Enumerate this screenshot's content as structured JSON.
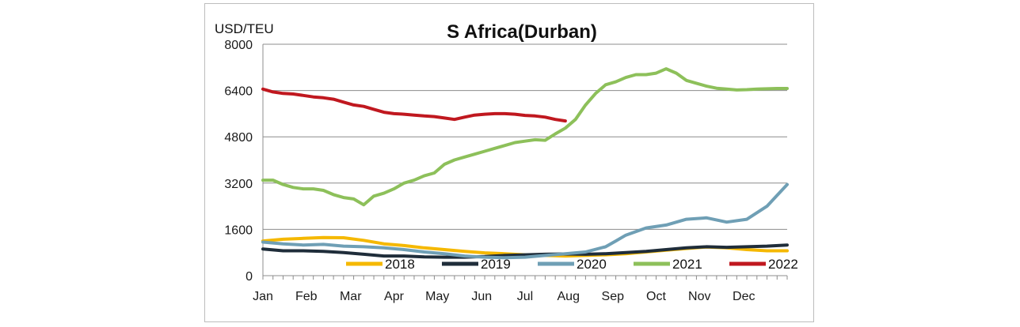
{
  "chart_data": {
    "type": "line",
    "title": "S Africa(Durban)",
    "ylabel": "USD/TEU",
    "xlabel": "",
    "ylim": [
      0,
      8000
    ],
    "yticks": [
      "0",
      "1600",
      "3200",
      "4800",
      "6400",
      "8000"
    ],
    "ytick_values": [
      0,
      1600,
      3200,
      4800,
      6400,
      8000
    ],
    "xlim": [
      0,
      52
    ],
    "categories": [
      "Jan",
      "Feb",
      "Mar",
      "Apr",
      "May",
      "Jun",
      "Jul",
      "Aug",
      "Sep",
      "Oct",
      "Nov",
      "Dec"
    ],
    "category_positions": [
      0,
      4.3,
      8.7,
      13,
      17.3,
      21.7,
      26,
      30.3,
      34.7,
      39,
      43.3,
      47.7
    ],
    "grid": true,
    "legend": "bottom",
    "series": [
      {
        "name": "2018",
        "color": "#f5b800",
        "x": [
          0,
          2,
          4,
          6,
          8,
          10,
          12,
          14,
          16,
          18,
          20,
          22,
          24,
          26,
          28,
          30,
          32,
          34,
          36,
          38,
          40,
          42,
          44,
          46,
          48,
          50,
          52
        ],
        "values": [
          1200,
          1260,
          1290,
          1320,
          1310,
          1220,
          1100,
          1040,
          960,
          900,
          840,
          790,
          760,
          720,
          700,
          680,
          700,
          720,
          760,
          820,
          880,
          940,
          990,
          960,
          900,
          860,
          860
        ]
      },
      {
        "name": "2019",
        "color": "#1f2d3a",
        "x": [
          0,
          2,
          4,
          6,
          8,
          10,
          12,
          14,
          16,
          18,
          20,
          22,
          24,
          26,
          28,
          30,
          32,
          34,
          36,
          38,
          40,
          42,
          44,
          46,
          48,
          50,
          52
        ],
        "values": [
          920,
          860,
          860,
          840,
          800,
          740,
          680,
          680,
          650,
          640,
          640,
          660,
          700,
          720,
          740,
          750,
          740,
          760,
          800,
          840,
          900,
          960,
          1000,
          980,
          1000,
          1020,
          1060
        ]
      },
      {
        "name": "2020",
        "color": "#6f9fb5",
        "x": [
          0,
          2,
          4,
          6,
          8,
          10,
          12,
          14,
          16,
          18,
          20,
          22,
          24,
          26,
          28,
          30,
          32,
          34,
          35,
          36,
          38,
          40,
          42,
          44,
          46,
          48,
          50,
          52
        ],
        "values": [
          1160,
          1100,
          1060,
          1080,
          1020,
          1000,
          960,
          900,
          820,
          760,
          680,
          640,
          620,
          640,
          700,
          760,
          820,
          1000,
          1200,
          1400,
          1650,
          1750,
          1950,
          2000,
          1850,
          1950,
          2400,
          3150
        ]
      },
      {
        "name": "2021",
        "color": "#8dc05a",
        "x": [
          0,
          1,
          2,
          3,
          4,
          5,
          6,
          7,
          8,
          9,
          10,
          11,
          12,
          13,
          14,
          15,
          16,
          17,
          18,
          19,
          20,
          21,
          22,
          23,
          24,
          25,
          26,
          27,
          28,
          29,
          30,
          31,
          32,
          33,
          34,
          35,
          36,
          37,
          38,
          39,
          40,
          41,
          42,
          43,
          44,
          45,
          46,
          47,
          48,
          49,
          50,
          51,
          52
        ],
        "values": [
          3300,
          3300,
          3150,
          3050,
          3000,
          3000,
          2950,
          2800,
          2700,
          2650,
          2450,
          2750,
          2850,
          3000,
          3200,
          3300,
          3450,
          3550,
          3850,
          4000,
          4100,
          4200,
          4300,
          4400,
          4500,
          4600,
          4650,
          4700,
          4680,
          4900,
          5100,
          5400,
          5900,
          6300,
          6600,
          6700,
          6850,
          6950,
          6950,
          7000,
          7150,
          7000,
          6750,
          6650,
          6550,
          6480,
          6450,
          6420,
          6430,
          6450,
          6460,
          6470,
          6470
        ]
      },
      {
        "name": "2022",
        "color": "#c0181f",
        "x": [
          0,
          1,
          2,
          3,
          4,
          5,
          6,
          7,
          8,
          9,
          10,
          11,
          12,
          13,
          14,
          15,
          16,
          17,
          18,
          19,
          20,
          21,
          22,
          23,
          24,
          25,
          26,
          27,
          28,
          29,
          30
        ],
        "values": [
          6450,
          6350,
          6300,
          6280,
          6230,
          6180,
          6150,
          6100,
          6000,
          5900,
          5850,
          5750,
          5650,
          5600,
          5580,
          5550,
          5520,
          5500,
          5450,
          5400,
          5480,
          5550,
          5580,
          5600,
          5600,
          5580,
          5540,
          5520,
          5480,
          5400,
          5350
        ]
      }
    ]
  }
}
